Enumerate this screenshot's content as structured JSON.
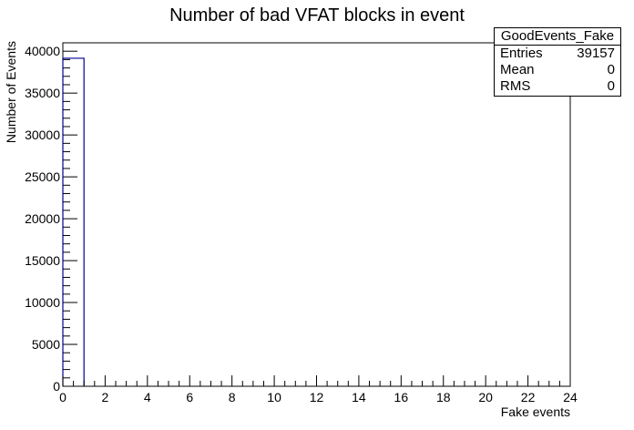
{
  "chart_data": {
    "type": "bar",
    "title": "Number of bad VFAT blocks in event",
    "xlabel": "Fake events",
    "ylabel": "Number of Events",
    "xlim": [
      0,
      24
    ],
    "ylim": [
      0,
      41000
    ],
    "x_ticks": [
      0,
      2,
      4,
      6,
      8,
      10,
      12,
      14,
      16,
      18,
      20,
      22,
      24
    ],
    "y_ticks": [
      0,
      5000,
      10000,
      15000,
      20000,
      25000,
      30000,
      35000,
      40000
    ],
    "bins": [
      {
        "low": 0,
        "high": 1,
        "value": 39157
      }
    ],
    "bar_color": "#000099",
    "legend_position": "top-right",
    "grid": false
  },
  "stats": {
    "name": "GoodEvents_Fake",
    "rows": [
      {
        "label": "Entries",
        "value": "39157"
      },
      {
        "label": "Mean",
        "value": "0"
      },
      {
        "label": "RMS",
        "value": "0"
      }
    ]
  }
}
